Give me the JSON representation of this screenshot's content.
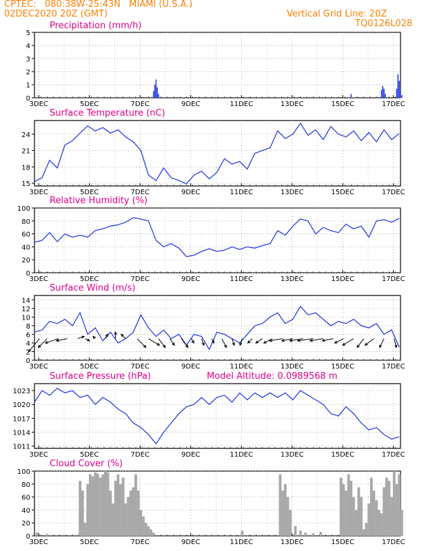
{
  "header": {
    "line1": "CPTEC:   080:38W-25:43N   MIAMI (U.S.A.)",
    "line2_left": "02DEC2020 20Z (GMT)",
    "line2_right": "Vertical Grid Line: 20Z",
    "line3_right": "TQ0126L028"
  },
  "colors": {
    "header": "#ff8000",
    "title": "#e0008a",
    "series": "#2a3fe0",
    "precip_bars": "#2a3fe0",
    "cloud_bars": "#a8a8a8",
    "wind_arrows": "#000000"
  },
  "x_tick_labels": [
    "3DEC",
    "5DEC",
    "7DEC",
    "9DEC",
    "11DEC",
    "13DEC",
    "15DEC",
    "17DEC"
  ],
  "x_axis_note": "time axis from 2DEC ~20Z to 17DEC ~06Z (days)",
  "chart_data": [
    {
      "id": "precipitation",
      "type": "bar",
      "title": "Precipitation (mm/h)",
      "yticks": [
        0,
        1,
        2,
        3,
        4,
        5
      ],
      "ylim": [
        0,
        5
      ],
      "grid": true,
      "x_days": [
        4.7,
        4.75,
        4.8,
        4.85,
        4.9,
        12.5,
        13.7,
        13.75,
        13.8,
        13.85,
        14.3,
        14.35,
        14.4,
        14.45,
        14.5
      ],
      "values": [
        0.5,
        1.0,
        1.4,
        0.8,
        0.3,
        0.3,
        0.6,
        0.9,
        0.7,
        0.3,
        0.7,
        1.8,
        1.3,
        0.5,
        0.2
      ]
    },
    {
      "id": "temperature",
      "type": "line",
      "title": "Surface Temperature (nC)",
      "yticks": [
        15,
        18,
        21,
        24
      ],
      "ylim": [
        14.5,
        26.5
      ],
      "grid": true,
      "x_days": [
        0,
        0.3,
        0.6,
        0.9,
        1.2,
        1.5,
        1.8,
        2.1,
        2.4,
        2.7,
        3.0,
        3.3,
        3.6,
        3.9,
        4.2,
        4.5,
        4.8,
        5.1,
        5.4,
        5.7,
        6.0,
        6.3,
        6.6,
        6.9,
        7.2,
        7.5,
        7.8,
        8.1,
        8.4,
        8.7,
        9.0,
        9.3,
        9.6,
        9.9,
        10.2,
        10.5,
        10.8,
        11.1,
        11.4,
        11.7,
        12.0,
        12.3,
        12.6,
        12.9,
        13.2,
        13.5,
        13.8,
        14.1,
        14.4
      ],
      "values": [
        15.3,
        16.0,
        19.2,
        17.8,
        22.0,
        22.8,
        24.2,
        25.5,
        24.6,
        25.2,
        24.2,
        24.8,
        23.5,
        22.6,
        21.0,
        16.5,
        15.5,
        17.8,
        16.0,
        15.5,
        14.9,
        16.5,
        17.2,
        15.8,
        17.0,
        19.5,
        18.5,
        19.0,
        17.6,
        20.5,
        21.0,
        21.5,
        24.6,
        23.2,
        24.0,
        26.0,
        23.8,
        24.8,
        23.0,
        25.4,
        24.0,
        23.5,
        24.6,
        22.8,
        24.3,
        22.6,
        24.8,
        23.0,
        24.1
      ]
    },
    {
      "id": "humidity",
      "type": "line",
      "title": "Relative Humidity (%)",
      "yticks": [
        0,
        20,
        40,
        60,
        80,
        100
      ],
      "ylim": [
        0,
        100
      ],
      "grid": true,
      "x_days": [
        0,
        0.3,
        0.6,
        0.9,
        1.2,
        1.5,
        1.8,
        2.1,
        2.4,
        2.7,
        3.0,
        3.3,
        3.6,
        3.9,
        4.2,
        4.5,
        4.8,
        5.1,
        5.4,
        5.7,
        6.0,
        6.3,
        6.6,
        6.9,
        7.2,
        7.5,
        7.8,
        8.1,
        8.4,
        8.7,
        9.0,
        9.3,
        9.6,
        9.9,
        10.2,
        10.5,
        10.8,
        11.1,
        11.4,
        11.7,
        12.0,
        12.3,
        12.6,
        12.9,
        13.2,
        13.5,
        13.8,
        14.1,
        14.4
      ],
      "values": [
        47,
        50,
        62,
        48,
        60,
        55,
        58,
        55,
        65,
        68,
        72,
        74,
        78,
        85,
        83,
        80,
        50,
        40,
        45,
        38,
        25,
        27,
        33,
        37,
        33,
        35,
        40,
        36,
        40,
        38,
        42,
        45,
        65,
        58,
        72,
        83,
        80,
        60,
        70,
        65,
        62,
        75,
        68,
        72,
        55,
        80,
        82,
        78,
        84
      ]
    },
    {
      "id": "wind",
      "type": "line",
      "title": "Surface Wind (m/s)",
      "yticks": [
        0,
        2,
        4,
        6,
        8,
        10,
        12,
        14
      ],
      "ylim": [
        0,
        15
      ],
      "grid": true,
      "x_days": [
        0,
        0.3,
        0.6,
        0.9,
        1.2,
        1.5,
        1.8,
        2.1,
        2.4,
        2.7,
        3.0,
        3.3,
        3.6,
        3.9,
        4.2,
        4.5,
        4.8,
        5.1,
        5.4,
        5.7,
        6.0,
        6.3,
        6.6,
        6.9,
        7.2,
        7.5,
        7.8,
        8.1,
        8.4,
        8.7,
        9.0,
        9.3,
        9.6,
        9.9,
        10.2,
        10.5,
        10.8,
        11.1,
        11.4,
        11.7,
        12.0,
        12.3,
        12.6,
        12.9,
        13.2,
        13.5,
        13.8,
        14.1,
        14.4
      ],
      "values": [
        6.5,
        7.0,
        9.0,
        8.5,
        9.5,
        8.0,
        11.0,
        6.0,
        7.5,
        4.5,
        6.5,
        4.0,
        5.0,
        6.5,
        10.5,
        7.5,
        5.5,
        7.0,
        5.0,
        6.0,
        3.5,
        6.0,
        5.5,
        2.5,
        6.5,
        6.0,
        5.0,
        4.0,
        6.0,
        8.0,
        8.5,
        10.0,
        11.0,
        8.5,
        9.5,
        12.5,
        10.5,
        11.0,
        9.5,
        8.0,
        9.0,
        8.5,
        9.5,
        8.0,
        7.5,
        8.5,
        6.0,
        7.0,
        3.0
      ],
      "arrows": {
        "x_days": [
          0.2,
          0.5,
          0.95,
          1.3,
          1.7,
          2.0,
          2.4,
          2.8,
          3.2,
          3.6,
          4.05,
          4.5,
          4.9,
          5.35,
          5.8,
          6.2,
          6.6,
          7.0,
          7.4,
          7.8,
          8.2,
          8.6,
          9.0,
          9.4,
          9.8,
          10.2,
          10.6,
          11.0,
          11.4,
          11.8,
          12.2,
          12.6,
          13.0,
          13.4,
          13.8,
          14.2
        ],
        "u": [
          -5,
          -4,
          -6,
          -5,
          3,
          2,
          -1,
          1,
          0,
          -2,
          4,
          5,
          3,
          2,
          3,
          1,
          1,
          1,
          2,
          1,
          -1,
          -2,
          -3,
          -4,
          -6,
          -5,
          -6,
          -7,
          -6,
          -5,
          -4,
          -5,
          -3,
          -4,
          -2,
          1
        ],
        "v": [
          -6,
          -4,
          -2,
          -1,
          1,
          -1,
          1,
          2,
          3,
          2,
          -4,
          -3,
          -4,
          -3,
          -4,
          -2,
          -3,
          -2,
          -4,
          -3,
          -3,
          -2,
          -2,
          -2,
          -1,
          -1,
          -1,
          -1,
          -1,
          -1,
          -2,
          -3,
          -4,
          -3,
          -4,
          -4
        ]
      }
    },
    {
      "id": "pressure",
      "type": "line",
      "title": "Surface Pressure (hPa)",
      "annotation": "Model Altitude: 0.0989568 m",
      "yticks": [
        1011,
        1014,
        1017,
        1020,
        1023
      ],
      "ylim": [
        1010.5,
        1024.5
      ],
      "grid": true,
      "x_days": [
        0,
        0.3,
        0.6,
        0.9,
        1.2,
        1.5,
        1.8,
        2.1,
        2.4,
        2.7,
        3.0,
        3.3,
        3.6,
        3.9,
        4.2,
        4.5,
        4.8,
        5.1,
        5.4,
        5.7,
        6.0,
        6.3,
        6.6,
        6.9,
        7.2,
        7.5,
        7.8,
        8.1,
        8.4,
        8.7,
        9.0,
        9.3,
        9.6,
        9.9,
        10.2,
        10.5,
        10.8,
        11.1,
        11.4,
        11.7,
        12.0,
        12.3,
        12.6,
        12.9,
        13.2,
        13.5,
        13.8,
        14.1,
        14.4
      ],
      "values": [
        1020.5,
        1023.0,
        1022.0,
        1023.5,
        1022.5,
        1023.0,
        1021.5,
        1022.0,
        1020.0,
        1021.5,
        1020.5,
        1019.0,
        1018.0,
        1016.0,
        1015.0,
        1013.5,
        1011.5,
        1014.0,
        1016.0,
        1018.0,
        1019.5,
        1020.0,
        1021.5,
        1020.0,
        1021.5,
        1022.0,
        1020.5,
        1022.5,
        1021.0,
        1022.5,
        1021.5,
        1022.5,
        1021.5,
        1022.5,
        1021.0,
        1023.0,
        1022.0,
        1021.0,
        1020.0,
        1018.0,
        1017.5,
        1019.5,
        1018.0,
        1016.0,
        1014.5,
        1015.0,
        1013.5,
        1012.5,
        1013.0
      ]
    },
    {
      "id": "cloud",
      "type": "bar",
      "title": "Cloud Cover (%)",
      "yticks": [
        0,
        20,
        40,
        60,
        80,
        100
      ],
      "ylim": [
        0,
        100
      ],
      "grid": true,
      "x_days": [
        0.1,
        0.5,
        1.8,
        1.9,
        2.0,
        2.1,
        2.2,
        2.3,
        2.4,
        2.5,
        2.6,
        2.7,
        2.8,
        2.9,
        3.0,
        3.1,
        3.2,
        3.3,
        3.4,
        3.5,
        3.6,
        3.7,
        3.8,
        3.9,
        4.0,
        4.1,
        4.2,
        4.3,
        4.4,
        4.5,
        4.6,
        4.7,
        8.2,
        9.7,
        9.8,
        9.9,
        10.0,
        10.1,
        10.3,
        10.5,
        10.7,
        11.0,
        11.3,
        12.1,
        12.2,
        12.3,
        12.4,
        12.5,
        12.6,
        12.7,
        12.8,
        12.9,
        13.0,
        13.1,
        13.2,
        13.3,
        13.4,
        13.5,
        13.6,
        13.7,
        13.8,
        13.9,
        14.0,
        14.1,
        14.2,
        14.3,
        14.4,
        14.5
      ],
      "values": [
        5,
        3,
        85,
        70,
        20,
        80,
        95,
        92,
        98,
        96,
        90,
        95,
        100,
        98,
        70,
        50,
        85,
        95,
        80,
        90,
        50,
        60,
        70,
        75,
        95,
        70,
        40,
        30,
        20,
        15,
        10,
        5,
        8,
        95,
        70,
        80,
        60,
        40,
        15,
        8,
        5,
        4,
        6,
        90,
        80,
        70,
        95,
        85,
        60,
        40,
        75,
        60,
        10,
        20,
        50,
        90,
        70,
        55,
        40,
        35,
        75,
        90,
        85,
        60,
        100,
        80,
        95,
        40
      ]
    }
  ]
}
